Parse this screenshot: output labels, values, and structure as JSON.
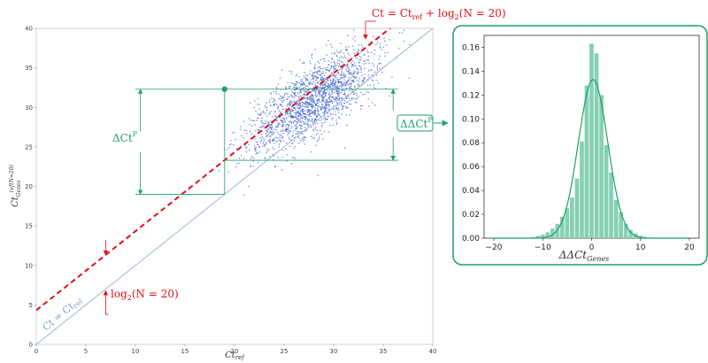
{
  "colors": {
    "points": "#3e63c7",
    "ref_line": "#9fb4dc",
    "shift_line": "#e0101a",
    "accent": "#1f9e6e",
    "hist_bars": "#86d1b3"
  },
  "chart_data": [
    {
      "type": "scatter",
      "xlabel": "Ct_ref",
      "ylabel": "Ct_Genes^(ref(N=20))",
      "xlim": [
        0,
        40
      ],
      "ylim": [
        0,
        40
      ],
      "xticks": [
        "0",
        "5",
        "10",
        "15",
        "20",
        "25",
        "30",
        "35",
        "40"
      ],
      "yticks": [
        "0",
        "5",
        "10",
        "15",
        "20",
        "25",
        "30",
        "35",
        "40"
      ],
      "grid": false,
      "lines": [
        {
          "label": "Ct = Ct_ref",
          "slope": 1,
          "intercept": 0
        },
        {
          "label": "Ct = Ct_ref + log2(N = 20)",
          "slope": 1,
          "intercept": 4.32
        }
      ],
      "shift_label": "log2(N = 20)",
      "point_cloud": {
        "n": 1800,
        "center": [
          28,
          31
        ],
        "spread_along": 4.2,
        "spread_across": 1.7
      },
      "highlight_point": {
        "x": 19,
        "y": 32.3
      },
      "delta_ct_p": {
        "label": "ΔCt^P",
        "y_low": 19,
        "y_high": 32.3
      },
      "delta_delta_ct_p": {
        "label": "ΔΔCt^P",
        "y_low": 23.3,
        "y_high": 32.3
      }
    },
    {
      "type": "bar",
      "title": "",
      "xlabel": "ΔΔCt_Genes",
      "ylabel": "",
      "xlim": [
        -22,
        22
      ],
      "ylim": [
        0,
        0.17
      ],
      "xticks": [
        "−20",
        "−10",
        "0",
        "10",
        "20"
      ],
      "yticks": [
        "0.00",
        "0.02",
        "0.04",
        "0.06",
        "0.08",
        "0.10",
        "0.12",
        "0.14",
        "0.16"
      ],
      "bin_width": 1,
      "bins": [
        {
          "x": -12,
          "value": 0.001
        },
        {
          "x": -11,
          "value": 0.002
        },
        {
          "x": -10,
          "value": 0.003
        },
        {
          "x": -9,
          "value": 0.005
        },
        {
          "x": -8,
          "value": 0.008
        },
        {
          "x": -7,
          "value": 0.012
        },
        {
          "x": -6,
          "value": 0.018
        },
        {
          "x": -5,
          "value": 0.025
        },
        {
          "x": -4,
          "value": 0.034
        },
        {
          "x": -3,
          "value": 0.05
        },
        {
          "x": -2,
          "value": 0.081
        },
        {
          "x": -1,
          "value": 0.128
        },
        {
          "x": 0,
          "value": 0.163
        },
        {
          "x": 1,
          "value": 0.155
        },
        {
          "x": 2,
          "value": 0.12
        },
        {
          "x": 3,
          "value": 0.078
        },
        {
          "x": 4,
          "value": 0.055
        },
        {
          "x": 5,
          "value": 0.032
        },
        {
          "x": 6,
          "value": 0.022
        },
        {
          "x": 7,
          "value": 0.012
        },
        {
          "x": 8,
          "value": 0.007
        },
        {
          "x": 9,
          "value": 0.004
        },
        {
          "x": 10,
          "value": 0.002
        },
        {
          "x": 11,
          "value": 0.001
        }
      ],
      "density_curve": {
        "mean": 0.3,
        "std": 3.0
      }
    }
  ]
}
